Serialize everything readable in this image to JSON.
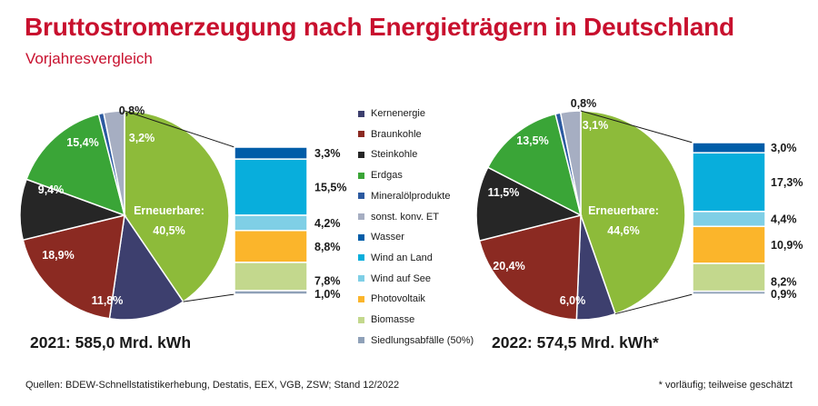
{
  "title": "Bruttostromerzeugung nach Energieträgern in Deutschland",
  "subtitle": "Vorjahresvergleich",
  "legend": [
    {
      "label": "Kernenergie",
      "color": "#3d3f6e"
    },
    {
      "label": "Braunkohle",
      "color": "#8b2a22"
    },
    {
      "label": "Steinkohle",
      "color": "#262626"
    },
    {
      "label": "Erdgas",
      "color": "#3aa537"
    },
    {
      "label": "Mineralölprodukte",
      "color": "#2c5aa0"
    },
    {
      "label": "sonst. konv. ET",
      "color": "#a6aec2"
    },
    {
      "label": "Wasser",
      "color": "#005da8"
    },
    {
      "label": "Wind an Land",
      "color": "#08aedc"
    },
    {
      "label": "Wind auf See",
      "color": "#7fcfe6"
    },
    {
      "label": "Photovoltaik",
      "color": "#fbb52b"
    },
    {
      "label": "Biomasse",
      "color": "#c3d88d"
    },
    {
      "label": "Siedlungsabfälle (50%)",
      "color": "#8fa1b8"
    }
  ],
  "chart_data": [
    {
      "type": "pie",
      "total_label": "2021: 585,0 Mrd. kWh",
      "slices": [
        {
          "name": "Erneuerbare",
          "label": "Erneuerbare:",
          "value": 40.5,
          "value_label": "40,5%",
          "color": "#8dbb3a"
        },
        {
          "name": "Kernenergie",
          "value": 11.8,
          "value_label": "11,8%",
          "color": "#3d3f6e"
        },
        {
          "name": "Braunkohle",
          "value": 18.9,
          "value_label": "18,9%",
          "color": "#8b2a22"
        },
        {
          "name": "Steinkohle",
          "value": 9.4,
          "value_label": "9,4%",
          "color": "#262626"
        },
        {
          "name": "Erdgas",
          "value": 15.4,
          "value_label": "15,4%",
          "color": "#3aa537"
        },
        {
          "name": "Mineralölprodukte",
          "value": 0.8,
          "value_label": "0,8%",
          "color": "#2c5aa0"
        },
        {
          "name": "sonst. konv. ET",
          "value": 3.2,
          "value_label": "3,2%",
          "color": "#a6aec2"
        }
      ],
      "renewables_breakdown": [
        {
          "name": "Wasser",
          "value": 3.3,
          "value_label": "3,3%",
          "color": "#005da8"
        },
        {
          "name": "Wind an Land",
          "value": 15.5,
          "value_label": "15,5%",
          "color": "#08aedc"
        },
        {
          "name": "Wind auf See",
          "value": 4.2,
          "value_label": "4,2%",
          "color": "#7fcfe6"
        },
        {
          "name": "Photovoltaik",
          "value": 8.8,
          "value_label": "8,8%",
          "color": "#fbb52b"
        },
        {
          "name": "Biomasse",
          "value": 7.8,
          "value_label": "7,8%",
          "color": "#c3d88d"
        },
        {
          "name": "Siedlungsabfälle (50%)",
          "value": 1.0,
          "value_label": "1,0%",
          "color": "#8fa1b8"
        }
      ]
    },
    {
      "type": "pie",
      "total_label": "2022: 574,5 Mrd. kWh*",
      "slices": [
        {
          "name": "Erneuerbare",
          "label": "Erneuerbare:",
          "value": 44.6,
          "value_label": "44,6%",
          "color": "#8dbb3a"
        },
        {
          "name": "Kernenergie",
          "value": 6.0,
          "value_label": "6,0%",
          "color": "#3d3f6e"
        },
        {
          "name": "Braunkohle",
          "value": 20.4,
          "value_label": "20,4%",
          "color": "#8b2a22"
        },
        {
          "name": "Steinkohle",
          "value": 11.5,
          "value_label": "11,5%",
          "color": "#262626"
        },
        {
          "name": "Erdgas",
          "value": 13.5,
          "value_label": "13,5%",
          "color": "#3aa537"
        },
        {
          "name": "Mineralölprodukte",
          "value": 0.8,
          "value_label": "0,8%",
          "color": "#2c5aa0"
        },
        {
          "name": "sonst. konv. ET",
          "value": 3.1,
          "value_label": "3,1%",
          "color": "#a6aec2"
        }
      ],
      "renewables_breakdown": [
        {
          "name": "Wasser",
          "value": 3.0,
          "value_label": "3,0%",
          "color": "#005da8"
        },
        {
          "name": "Wind an Land",
          "value": 17.3,
          "value_label": "17,3%",
          "color": "#08aedc"
        },
        {
          "name": "Wind auf See",
          "value": 4.4,
          "value_label": "4,4%",
          "color": "#7fcfe6"
        },
        {
          "name": "Photovoltaik",
          "value": 10.9,
          "value_label": "10,9%",
          "color": "#fbb52b"
        },
        {
          "name": "Biomasse",
          "value": 8.2,
          "value_label": "8,2%",
          "color": "#c3d88d"
        },
        {
          "name": "Siedlungsabfälle (50%)",
          "value": 0.9,
          "value_label": "0,9%",
          "color": "#8fa1b8"
        }
      ]
    }
  ],
  "source": "Quellen: BDEW-Schnellstatistikerhebung, Destatis, EEX, VGB, ZSW; Stand 12/2022",
  "footnote": "* vorläufig; teilweise geschätzt"
}
